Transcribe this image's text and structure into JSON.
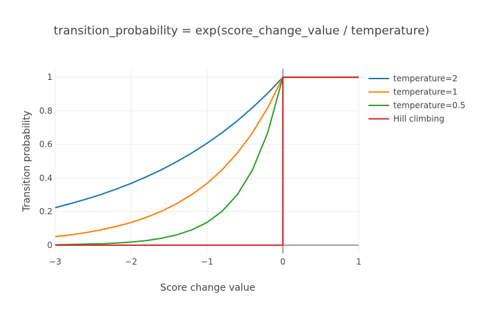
{
  "chart_data": {
    "type": "line",
    "title": "transition_probability = exp(score_change_value / temperature)",
    "xlabel": "Score change value",
    "ylabel": "Transition probability",
    "xlim": [
      -3,
      1
    ],
    "ylim": [
      -0.05,
      1.05
    ],
    "x_ticks": [
      -3,
      -2,
      -1,
      0,
      1
    ],
    "x_tick_labels": [
      "−3",
      "−2",
      "−1",
      "0",
      "1"
    ],
    "y_ticks": [
      0,
      0.2,
      0.4,
      0.6,
      0.8,
      1
    ],
    "y_tick_labels": [
      "0",
      "0.2",
      "0.4",
      "0.6",
      "0.8",
      "1"
    ],
    "grid": true,
    "zero_lines": true,
    "legend_position": "right",
    "series": [
      {
        "name": "temperature=2",
        "color": "#1f77b4",
        "x": [
          -3,
          -2.8,
          -2.6,
          -2.4,
          -2.2,
          -2,
          -1.8,
          -1.6,
          -1.4,
          -1.2,
          -1,
          -0.8,
          -0.6,
          -0.4,
          -0.2,
          0,
          0.2,
          0.4,
          0.6,
          0.8,
          1
        ],
        "y": [
          0.223,
          0.247,
          0.273,
          0.301,
          0.333,
          0.368,
          0.407,
          0.449,
          0.497,
          0.549,
          0.607,
          0.67,
          0.741,
          0.819,
          0.905,
          1,
          1,
          1,
          1,
          1,
          1
        ]
      },
      {
        "name": "temperature=1",
        "color": "#ff7f0e",
        "x": [
          -3,
          -2.8,
          -2.6,
          -2.4,
          -2.2,
          -2,
          -1.8,
          -1.6,
          -1.4,
          -1.2,
          -1,
          -0.8,
          -0.6,
          -0.4,
          -0.2,
          0,
          0.2,
          0.4,
          0.6,
          0.8,
          1
        ],
        "y": [
          0.05,
          0.061,
          0.074,
          0.091,
          0.111,
          0.135,
          0.165,
          0.202,
          0.247,
          0.301,
          0.368,
          0.449,
          0.549,
          0.67,
          0.819,
          1,
          1,
          1,
          1,
          1,
          1
        ]
      },
      {
        "name": "temperature=0.5",
        "color": "#2ca02c",
        "x": [
          -3,
          -2.8,
          -2.6,
          -2.4,
          -2.2,
          -2,
          -1.8,
          -1.6,
          -1.4,
          -1.2,
          -1,
          -0.8,
          -0.6,
          -0.4,
          -0.2,
          0,
          0.2,
          0.4,
          0.6,
          0.8,
          1
        ],
        "y": [
          0.002,
          0.004,
          0.006,
          0.008,
          0.012,
          0.018,
          0.027,
          0.041,
          0.061,
          0.091,
          0.135,
          0.202,
          0.301,
          0.449,
          0.67,
          1,
          1,
          1,
          1,
          1,
          1
        ]
      },
      {
        "name": "Hill climbing",
        "color": "#d62728",
        "x": [
          -3,
          -2,
          -1,
          0,
          0,
          0.5,
          1
        ],
        "y": [
          0,
          0,
          0,
          0,
          1,
          1,
          1
        ]
      }
    ]
  }
}
